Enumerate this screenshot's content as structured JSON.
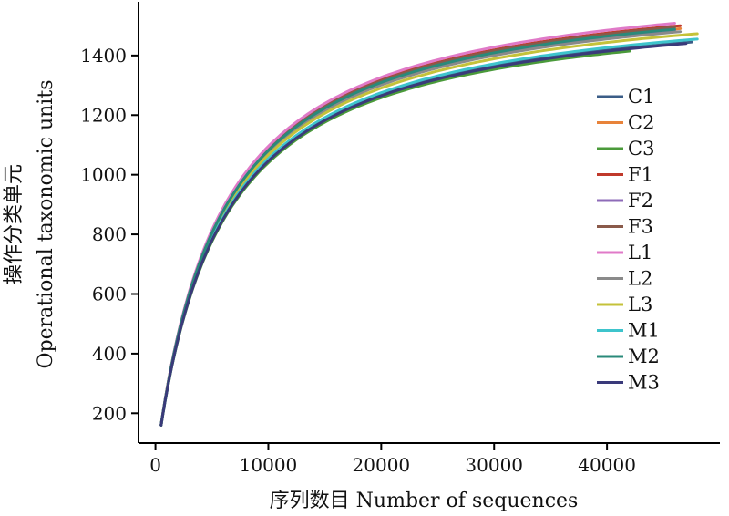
{
  "chart_data": {
    "type": "line",
    "title": "",
    "xlabel": "序列数目 Number of sequences",
    "ylabel_cn": "操作分类单元",
    "ylabel_en": "Operational taxonomic units",
    "xlim": [
      -1500,
      50000
    ],
    "ylim": [
      100,
      1580
    ],
    "xticks": [
      0,
      10000,
      20000,
      30000,
      40000
    ],
    "xtick_labels": [
      "0",
      "10000",
      "20000",
      "30000",
      "40000"
    ],
    "yticks": [
      200,
      400,
      600,
      800,
      1000,
      1200,
      1400
    ],
    "ytick_labels": [
      "200",
      "400",
      "600",
      "800",
      "1000",
      "1200",
      "1400"
    ],
    "legend_position": "right",
    "grid": false,
    "x_start": 500,
    "y_start": 160,
    "series": [
      {
        "name": "C1",
        "color": "#3b5d87",
        "x_max": 47500,
        "y_max": 1445
      },
      {
        "name": "C2",
        "color": "#e8833a",
        "x_max": 46500,
        "y_max": 1490
      },
      {
        "name": "C3",
        "color": "#4a9a3a",
        "x_max": 42000,
        "y_max": 1415
      },
      {
        "name": "F1",
        "color": "#c0392b",
        "x_max": 46500,
        "y_max": 1500
      },
      {
        "name": "F2",
        "color": "#8e6bb8",
        "x_max": 46000,
        "y_max": 1485
      },
      {
        "name": "F3",
        "color": "#8a5a4a",
        "x_max": 46000,
        "y_max": 1495
      },
      {
        "name": "L1",
        "color": "#e07ac8",
        "x_max": 46000,
        "y_max": 1508
      },
      {
        "name": "L2",
        "color": "#8a8a8a",
        "x_max": 46500,
        "y_max": 1480
      },
      {
        "name": "L3",
        "color": "#c4c23a",
        "x_max": 48000,
        "y_max": 1473
      },
      {
        "name": "M1",
        "color": "#3ec4cc",
        "x_max": 48000,
        "y_max": 1455
      },
      {
        "name": "M2",
        "color": "#2a8a7a",
        "x_max": 46000,
        "y_max": 1488
      },
      {
        "name": "M3",
        "color": "#3a3a7a",
        "x_max": 47000,
        "y_max": 1440
      }
    ]
  }
}
